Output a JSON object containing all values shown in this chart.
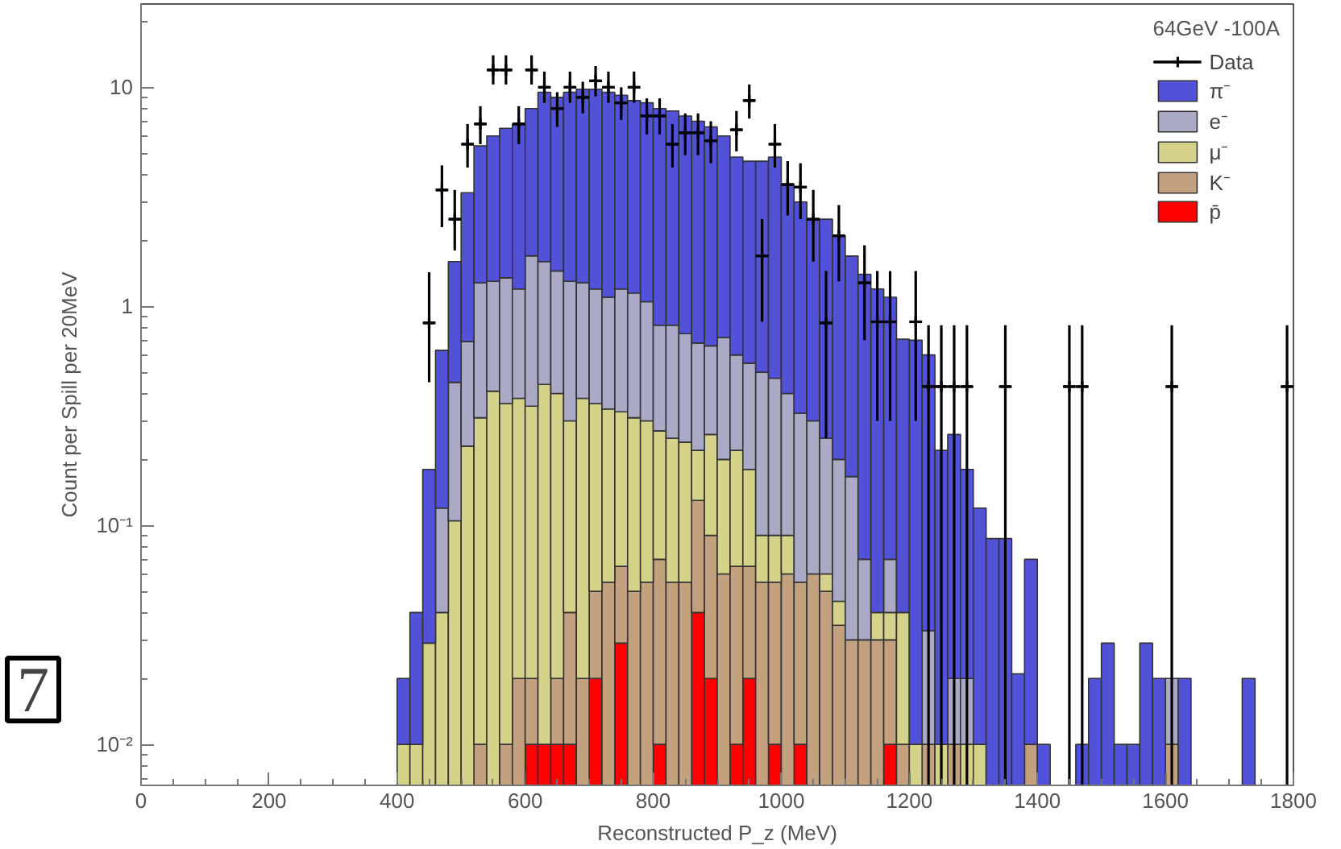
{
  "chart_data": {
    "type": "bar",
    "stacked": true,
    "xlabel": "Reconstructed P_z (MeV)",
    "ylabel": "Count per Spill per 20MeV",
    "legend_title": "64GeV -100A",
    "annotations": [
      "7"
    ],
    "log": true,
    "grid": false,
    "legend": "top right",
    "xlim": [
      0,
      1800
    ],
    "xticks": [
      0,
      200,
      400,
      600,
      800,
      1000,
      1200,
      1400,
      1600,
      1800
    ],
    "ylim": [
      0.0065,
      24
    ],
    "yticks": [
      {
        "value": 0.01,
        "label": "10⁻²"
      },
      {
        "value": 0.1,
        "label": "10⁻¹"
      },
      1,
      10
    ],
    "x": [
      410,
      430,
      450,
      470,
      490,
      510,
      530,
      550,
      570,
      590,
      610,
      630,
      650,
      670,
      690,
      710,
      730,
      750,
      770,
      790,
      810,
      830,
      850,
      870,
      890,
      910,
      930,
      950,
      970,
      990,
      1010,
      1030,
      1050,
      1070,
      1090,
      1110,
      1130,
      1150,
      1170,
      1190,
      1210,
      1230,
      1250,
      1270,
      1290,
      1310,
      1330,
      1350,
      1370,
      1390,
      1410,
      1430,
      1450,
      1470,
      1490,
      1510,
      1530,
      1550,
      1570,
      1590,
      1610,
      1630,
      1650,
      1670,
      1690,
      1710,
      1730
    ],
    "series": [
      {
        "name": "Data",
        "type": "scatter",
        "marker": "cross",
        "color": "#000000",
        "x": [
          450,
          470,
          490,
          510,
          530,
          550,
          570,
          590,
          610,
          630,
          650,
          670,
          690,
          710,
          730,
          750,
          770,
          790,
          810,
          830,
          850,
          870,
          890,
          930,
          950,
          970,
          990,
          1010,
          1030,
          1050,
          1070,
          1090,
          1130,
          1150,
          1170,
          1210,
          1230,
          1250,
          1270,
          1290,
          1350,
          1450,
          1470,
          1610,
          1790
        ],
        "values": [
          0.84,
          3.4,
          2.5,
          5.5,
          6.8,
          12,
          12,
          6.8,
          12,
          10,
          8,
          10,
          9,
          10.7,
          10,
          8.5,
          10,
          7.4,
          7.4,
          5.5,
          6.2,
          6.2,
          5.7,
          6.4,
          8.7,
          1.7,
          5.5,
          3.6,
          3.5,
          2.5,
          0.84,
          2.1,
          1.28,
          0.85,
          0.85,
          0.85,
          0.43,
          0.43,
          0.43,
          0.43,
          0.43,
          0.43,
          0.43,
          0.43,
          0.43
        ],
        "errors": [
          [
            0.45,
            1.43
          ],
          [
            2.3,
            4.4
          ],
          [
            1.8,
            3.4
          ],
          [
            4.3,
            6.8
          ],
          [
            5.5,
            8.2
          ],
          [
            10.3,
            14
          ],
          [
            10.3,
            14
          ],
          [
            5.5,
            8.2
          ],
          [
            10.3,
            14
          ],
          [
            8.5,
            11.8
          ],
          [
            6.6,
            9.5
          ],
          [
            8.5,
            11.8
          ],
          [
            7.6,
            10.6
          ],
          [
            9.1,
            12.5
          ],
          [
            8.5,
            11.8
          ],
          [
            7.1,
            10
          ],
          [
            8.5,
            11.8
          ],
          [
            6.1,
            8.9
          ],
          [
            6.1,
            8.9
          ],
          [
            4.3,
            6.8
          ],
          [
            4.9,
            7.6
          ],
          [
            4.9,
            7.6
          ],
          [
            4.5,
            7
          ],
          [
            5.1,
            7.8
          ],
          [
            7.2,
            10.3
          ],
          [
            0.85,
            2.5
          ],
          [
            4.3,
            6.8
          ],
          [
            2.6,
            4.6
          ],
          [
            2.5,
            4.5
          ],
          [
            1.6,
            3.4
          ],
          [
            0.25,
            1.45
          ],
          [
            1.3,
            2.9
          ],
          [
            0.7,
            1.9
          ],
          [
            0.3,
            1.45
          ],
          [
            0.3,
            1.45
          ],
          [
            0.3,
            1.45
          ],
          [
            0.0065,
            0.82
          ],
          [
            0.0065,
            0.82
          ],
          [
            0.0065,
            0.82
          ],
          [
            0.0065,
            0.82
          ],
          [
            0.0065,
            0.82
          ],
          [
            0.0065,
            0.82
          ],
          [
            0.0065,
            0.82
          ],
          [
            0.0065,
            0.82
          ],
          [
            0.0065,
            0.82
          ]
        ],
        "xerrors": [
          10,
          10,
          10,
          10,
          10,
          10,
          10,
          10,
          10,
          10,
          10,
          10,
          10,
          10,
          10,
          10,
          10,
          10,
          10,
          10,
          10,
          10,
          10,
          10,
          10,
          10,
          10,
          10,
          10,
          10,
          10,
          10,
          10,
          10,
          10,
          10,
          10,
          10,
          10,
          10,
          10,
          10,
          10,
          10,
          10
        ]
      },
      {
        "name": "p̄",
        "color": "#ff0000",
        "values": [
          null,
          null,
          null,
          null,
          null,
          null,
          null,
          null,
          null,
          null,
          0.01,
          0.01,
          0.01,
          0.01,
          null,
          0.02,
          null,
          0.029,
          null,
          null,
          0.01,
          null,
          null,
          0.04,
          0.02,
          null,
          0.01,
          0.02,
          null,
          0.01,
          null,
          0.01,
          null,
          null,
          null,
          null,
          null,
          null,
          0.01,
          null,
          null,
          null,
          null,
          null,
          null,
          null,
          null,
          null,
          null,
          null,
          null,
          null,
          null,
          null,
          null,
          null,
          null,
          null,
          null,
          null,
          null,
          null,
          null,
          null,
          null,
          null,
          null
        ]
      },
      {
        "name": "K⁻",
        "color": "#c3a17e",
        "values": [
          null,
          null,
          null,
          null,
          null,
          null,
          0.01,
          null,
          0.01,
          0.02,
          0.01,
          null,
          0.01,
          0.03,
          0.02,
          0.03,
          0.055,
          0.036,
          0.05,
          0.055,
          0.06,
          0.055,
          0.055,
          0.09,
          0.07,
          0.06,
          0.055,
          0.045,
          0.055,
          0.045,
          0.06,
          0.045,
          0.06,
          0.05,
          0.035,
          0.03,
          0.03,
          0.03,
          0.02,
          0.01,
          null,
          0.01,
          null,
          0.01,
          null,
          null,
          null,
          null,
          null,
          0.01,
          null,
          null,
          null,
          null,
          null,
          null,
          null,
          null,
          null,
          null,
          0.01,
          null,
          null,
          null,
          null,
          null,
          null
        ]
      },
      {
        "name": "μ⁻",
        "color": "#d5d28a",
        "values": [
          0.01,
          0.01,
          0.029,
          0.04,
          0.105,
          0.23,
          0.3,
          0.41,
          0.35,
          0.36,
          0.33,
          0.43,
          0.38,
          0.26,
          0.36,
          0.31,
          0.285,
          0.265,
          0.26,
          0.245,
          0.2,
          0.195,
          0.185,
          0.09,
          0.17,
          0.14,
          0.155,
          0.115,
          0.035,
          0.035,
          0.03,
          null,
          null,
          0.01,
          0.01,
          null,
          null,
          0.01,
          0.01,
          0.03,
          0.01,
          null,
          0.01,
          null,
          0.01,
          0.01,
          null,
          null,
          null,
          null,
          null,
          null,
          null,
          null,
          null,
          null,
          null,
          null,
          null,
          null,
          null,
          null,
          null,
          null,
          null,
          null,
          null
        ]
      },
      {
        "name": "e⁻",
        "color": "#aaaac6",
        "values": [
          null,
          null,
          null,
          0.08,
          0.345,
          0.46,
          0.97,
          0.89,
          0.99,
          0.82,
          1.35,
          1.16,
          1.05,
          1.0,
          0.9,
          0.84,
          0.76,
          0.87,
          0.84,
          0.75,
          0.55,
          0.57,
          0.51,
          0.46,
          0.4,
          0.52,
          0.38,
          0.37,
          0.41,
          0.38,
          0.31,
          0.27,
          0.24,
          0.19,
          0.155,
          0.137,
          0.04,
          null,
          0.03,
          null,
          null,
          0.023,
          null,
          0.01,
          0.01,
          null,
          null,
          null,
          null,
          null,
          null,
          null,
          null,
          null,
          null,
          null,
          null,
          null,
          null,
          null,
          0.01,
          null,
          null,
          null,
          null,
          null,
          null
        ]
      },
      {
        "name": "π⁻",
        "color": "#5252d9",
        "values": [
          0.01,
          0.03,
          0.151,
          0.51,
          1.15,
          2.61,
          4.12,
          4.7,
          5.15,
          5.6,
          6.3,
          7.9,
          7.55,
          8.2,
          8.52,
          8.6,
          8.4,
          8.0,
          7.55,
          7.45,
          7.18,
          6.98,
          6.65,
          6.32,
          5.94,
          5.28,
          4.2,
          4.05,
          4.1,
          4.33,
          3.2,
          2.67,
          2.2,
          2.25,
          1.9,
          1.53,
          1.33,
          1.16,
          1.03,
          0.668,
          0.69,
          0.567,
          0.21,
          0.24,
          0.16,
          0.11,
          0.087,
          0.087,
          0.021,
          0.06,
          0.01,
          null,
          null,
          0.01,
          0.02,
          0.029,
          0.01,
          0.01,
          0.029,
          0.02,
          null,
          0.02,
          null,
          null,
          null,
          null,
          0.02
        ]
      }
    ]
  }
}
